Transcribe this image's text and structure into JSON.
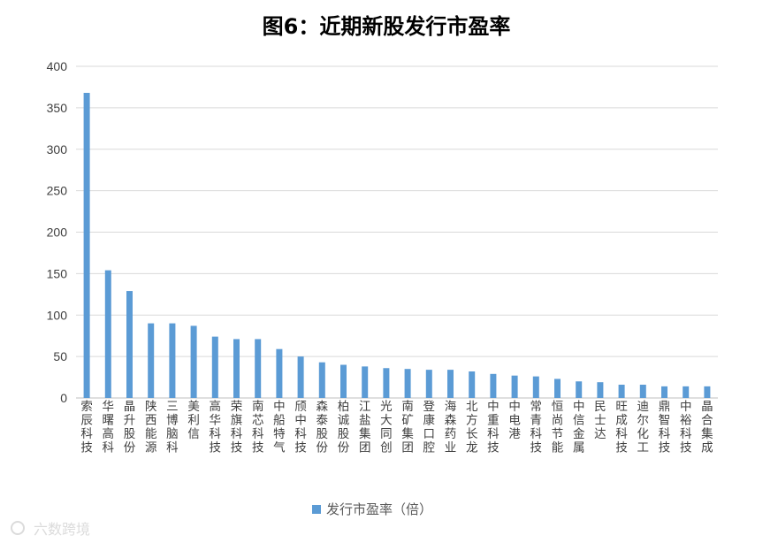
{
  "chart_data": {
    "type": "bar",
    "title": "图6：近期新股发行市盈率",
    "xlabel": "",
    "ylabel": "",
    "ylim": [
      0,
      400
    ],
    "yticks": [
      0,
      50,
      100,
      150,
      200,
      250,
      300,
      350,
      400
    ],
    "grid": true,
    "legend_position": "bottom",
    "categories": [
      "索辰科技",
      "华曙高科",
      "晶升股份",
      "陕西能源",
      "三博脑科",
      "美利信",
      "高华科技",
      "荣旗科技",
      "南芯科技",
      "中船特气",
      "颀中科技",
      "森泰股份",
      "柏诚股份",
      "江盐集团",
      "光大同创",
      "南矿集团",
      "登康口腔",
      "海森药业",
      "北方长龙",
      "中重科技",
      "中电港",
      "常青科技",
      "恒尚节能",
      "中信金属",
      "民士达",
      "旺成科技",
      "迪尔化工",
      "鼎智科技",
      "中裕科技",
      "晶合集成"
    ],
    "series": [
      {
        "name": "发行市盈率（倍）",
        "color": "#5B9BD5",
        "values": [
          368,
          154,
          129,
          90,
          90,
          87,
          74,
          71,
          71,
          59,
          50,
          43,
          40,
          38,
          36,
          35,
          34,
          34,
          32,
          29,
          27,
          26,
          23,
          20,
          19,
          16,
          16,
          14,
          14,
          14
        ]
      }
    ]
  },
  "watermark": "六数跨境"
}
